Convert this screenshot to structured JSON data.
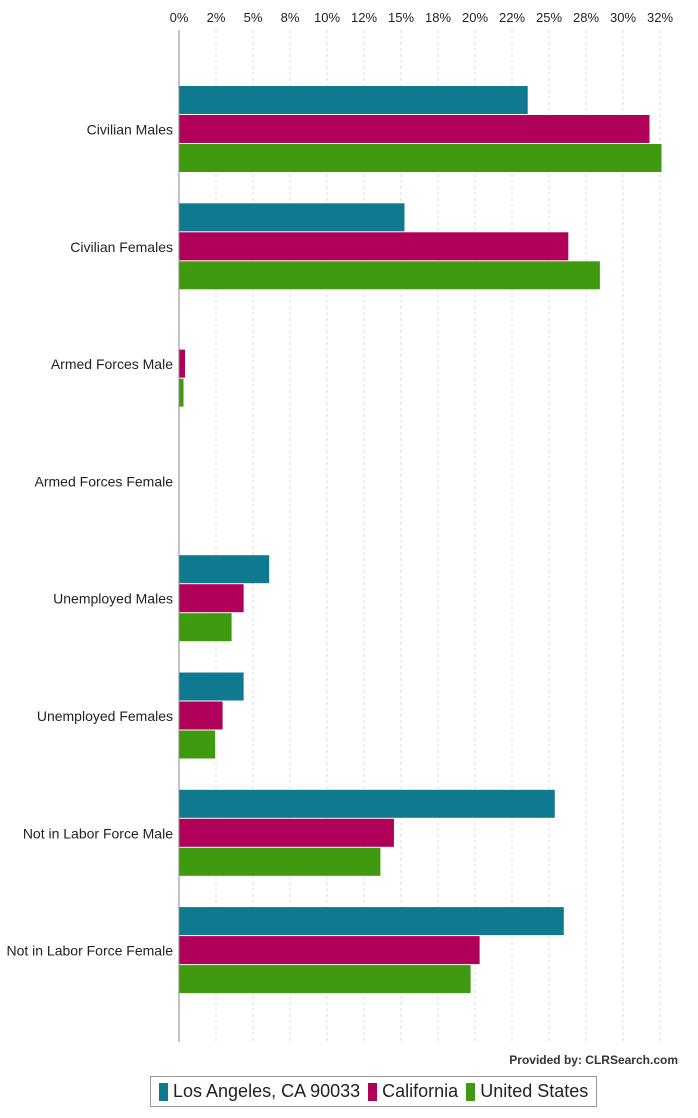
{
  "chart_data": {
    "type": "bar",
    "orientation": "horizontal",
    "title": "",
    "xlabel": "",
    "ylabel": "",
    "xlim": [
      0,
      32
    ],
    "x_ticks": [
      "0%",
      "2%",
      "5%",
      "8%",
      "10%",
      "12%",
      "15%",
      "18%",
      "20%",
      "22%",
      "25%",
      "28%",
      "30%",
      "32%"
    ],
    "grid": true,
    "legend_position": "bottom",
    "categories": [
      "Civilian Males",
      "Civilian Females",
      "Armed Forces Male",
      "Armed Forces Female",
      "Unemployed Males",
      "Unemployed Females",
      "Not in Labor Force Male",
      "Not in Labor Force Female"
    ],
    "series": [
      {
        "name": "Los Angeles, CA 90033",
        "color": "#0f7a8f",
        "values": [
          23.2,
          15.0,
          0,
          0,
          6.0,
          4.3,
          25.0,
          25.6
        ]
      },
      {
        "name": "California",
        "color": "#b0005a",
        "values": [
          31.3,
          25.9,
          0.4,
          0,
          4.3,
          2.9,
          14.3,
          20.0
        ]
      },
      {
        "name": "United States",
        "color": "#3f9a0f",
        "values": [
          32.1,
          28.0,
          0.3,
          0,
          3.5,
          2.4,
          13.4,
          19.4
        ]
      }
    ]
  },
  "footer": {
    "credit": "Provided by: CLRSearch.com"
  }
}
